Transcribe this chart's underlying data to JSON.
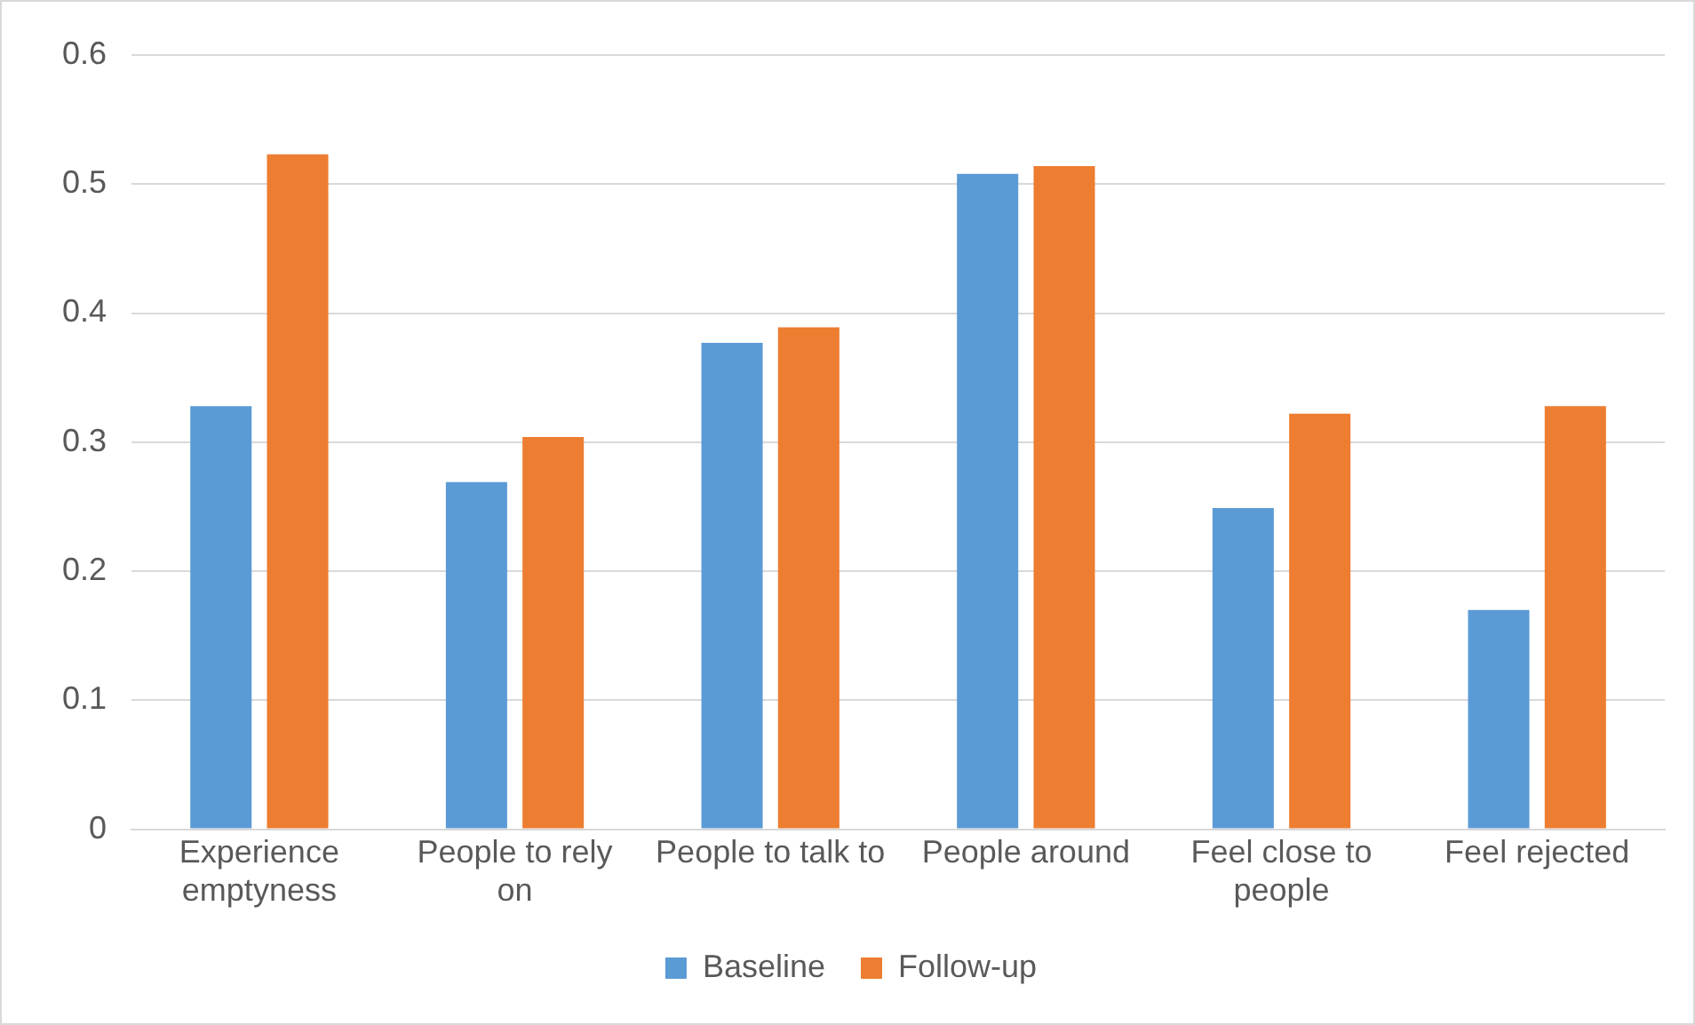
{
  "chart_data": {
    "type": "bar",
    "categories": [
      "Experience emptyness",
      "People to rely on",
      "People to talk to",
      "People around",
      "Feel close to people",
      "Feel rejected"
    ],
    "series": [
      {
        "name": "Baseline",
        "color": "#5b9bd5",
        "values": [
          0.328,
          0.269,
          0.377,
          0.508,
          0.249,
          0.17
        ]
      },
      {
        "name": "Follow-up",
        "color": "#ed7d31",
        "values": [
          0.523,
          0.304,
          0.389,
          0.514,
          0.322,
          0.328
        ]
      }
    ],
    "ylim": [
      0,
      0.6
    ],
    "yticks": [
      0,
      0.1,
      0.2,
      0.3,
      0.4,
      0.5,
      0.6
    ],
    "grid": "y",
    "legend": "bottom"
  }
}
